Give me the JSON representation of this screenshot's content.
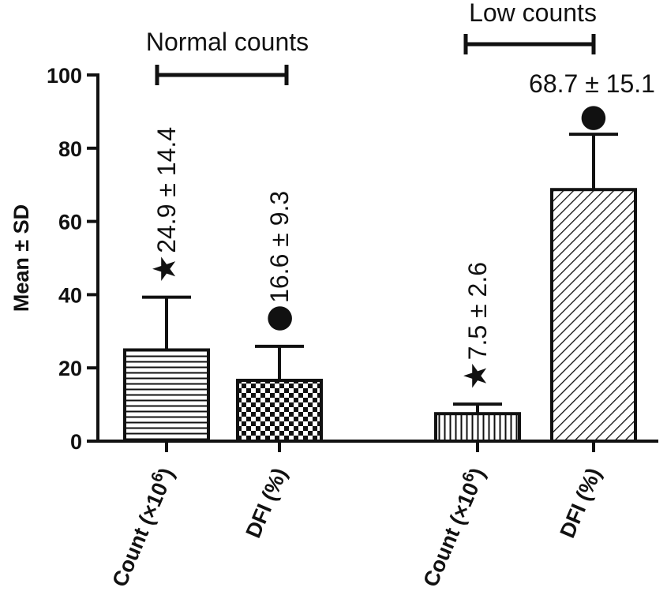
{
  "chart_data": {
    "type": "bar",
    "ylabel": "Mean ± SD",
    "ylim": [
      0,
      100
    ],
    "yticks": [
      0,
      20,
      40,
      60,
      80,
      100
    ],
    "groups": [
      {
        "label": "Normal counts"
      },
      {
        "label": "Low counts"
      }
    ],
    "bars": [
      {
        "group": 0,
        "category_main": "Count (×10",
        "category_sup": "6",
        "category_tail": ")",
        "mean": 24.9,
        "sd": 14.4,
        "label": "24.9 ± 14.4",
        "marker": "★",
        "pattern": "horizontal"
      },
      {
        "group": 0,
        "category_main": "DFI (%)",
        "category_sup": "",
        "category_tail": "",
        "mean": 16.6,
        "sd": 9.3,
        "label": "16.6 ± 9.3",
        "marker": "●",
        "pattern": "checker"
      },
      {
        "group": 1,
        "category_main": "Count (×10",
        "category_sup": "6",
        "category_tail": ")",
        "mean": 7.5,
        "sd": 2.6,
        "label": "7.5 ± 2.6",
        "marker": "★",
        "pattern": "vertical"
      },
      {
        "group": 1,
        "category_main": "DFI (%)",
        "category_sup": "",
        "category_tail": "",
        "mean": 68.7,
        "sd": 15.1,
        "label": "68.7 ± 15.1",
        "marker": "●",
        "pattern": "diagonal"
      }
    ]
  }
}
